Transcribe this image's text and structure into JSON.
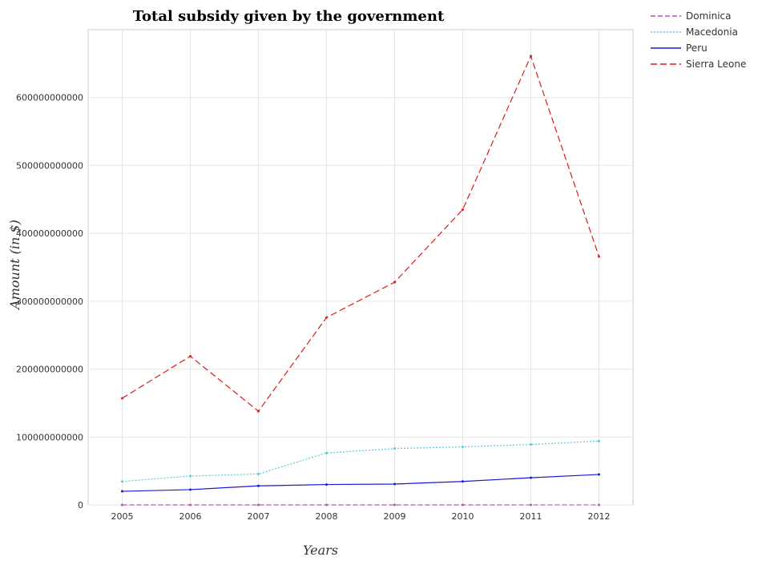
{
  "chart_data": {
    "type": "line",
    "title": "Total subsidy given by the government",
    "xlabel": "Years",
    "ylabel": "Amount (in $)",
    "x": [
      "2005",
      "2006",
      "2007",
      "2008",
      "2009",
      "2010",
      "2011",
      "2012"
    ],
    "ylim": [
      0,
      700000000000
    ],
    "yticks": [
      {
        "value": 0,
        "label": "0"
      },
      {
        "value": 100000000000,
        "label": "100000000000"
      },
      {
        "value": 200000000000,
        "label": "200000000000"
      },
      {
        "value": 300000000000,
        "label": "300000000000"
      },
      {
        "value": 400000000000,
        "label": "400000000000"
      },
      {
        "value": 500000000000,
        "label": "500000000000"
      },
      {
        "value": 600000000000,
        "label": "600000000000"
      }
    ],
    "grid": true,
    "legend_position": "top-right",
    "series": [
      {
        "name": "Dominica",
        "color": "#c04dc0",
        "dash": "6,3",
        "values": [
          30000000,
          32000000,
          35000000,
          38000000,
          40000000,
          42000000,
          45000000,
          48000000
        ]
      },
      {
        "name": "Macedonia",
        "color": "#5bc8d8",
        "dash": "2,2",
        "values": [
          34500000000,
          42500000000,
          45500000000,
          76500000000,
          83000000000,
          85500000000,
          89000000000,
          94000000000
        ]
      },
      {
        "name": "Peru",
        "color": "#1a1ad8",
        "dash": "",
        "values": [
          20000000000,
          22500000000,
          28000000000,
          30000000000,
          30700000000,
          34500000000,
          40000000000,
          44800000000
        ]
      },
      {
        "name": "Sierra Leone",
        "color": "#e01a1a",
        "dash": "8,4",
        "values": [
          157000000000,
          219000000000,
          138000000000,
          276000000000,
          328000000000,
          435000000000,
          661000000000,
          366000000000
        ]
      }
    ]
  }
}
